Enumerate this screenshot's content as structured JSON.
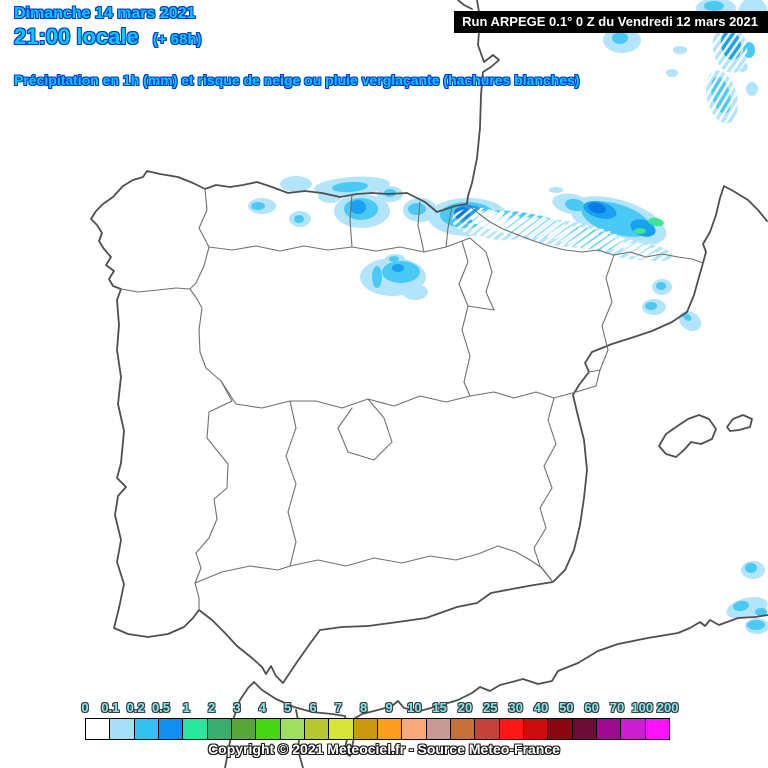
{
  "header": {
    "date_line": "Dimanche 14 mars 2021",
    "time_line": "21:00 locale",
    "offset_label": "(+ 68h)",
    "subtitle": "Précipitation en 1h (mm) et risque de neige ou pluie verglaçante (hachures blanches)",
    "run_label": "Run ARPEGE 0.1° 0 Z du Vendredi 12 mars 2021"
  },
  "footer": {
    "copyright": "Copyright © 2021 Meteociel.fr - Source Meteo-France"
  },
  "colors": {
    "title_fill": "#00ccff",
    "title_outline": "#0038cc",
    "run_bar_bg": "#000000",
    "run_bar_text": "#ffffff",
    "coastline": "#4f4f4f",
    "region_border": "#707070",
    "background": "#ffffff"
  },
  "legend": {
    "values": [
      "0",
      "0.1",
      "0.2",
      "0.5",
      "1",
      "2",
      "3",
      "4",
      "5",
      "6",
      "7",
      "8",
      "9",
      "10",
      "15",
      "20",
      "25",
      "30",
      "40",
      "50",
      "60",
      "70",
      "100",
      "200"
    ],
    "colors": [
      "#ffffff",
      "#a8def6",
      "#32c1f0",
      "#0f90f0",
      "#28e6a0",
      "#38af70",
      "#5aa53a",
      "#46d714",
      "#9fdf5f",
      "#b5c92e",
      "#d6e435",
      "#ca9a0e",
      "#ff9d1e",
      "#fca87a",
      "#c59b98",
      "#c57038",
      "#c64139",
      "#fc1a16",
      "#cb0d10",
      "#8d0710",
      "#6e0c35",
      "#9e0b8e",
      "#cb1ed0",
      "#fc12fc"
    ]
  },
  "map": {
    "level_colors": {
      "1": "#b2e4fb",
      "2": "#4ac9f4",
      "3": "#18a0f2",
      "4": "#0a7ae4",
      "5": "#3ee593"
    },
    "precipitation_blobs": [
      [
        352,
        186,
        38,
        9,
        -4,
        1
      ],
      [
        330,
        196,
        12,
        7,
        0,
        1
      ],
      [
        296,
        184,
        16,
        8,
        0,
        1
      ],
      [
        350,
        187,
        18,
        5,
        -4,
        2
      ],
      [
        262,
        206,
        14,
        8,
        0,
        1
      ],
      [
        258,
        206,
        7,
        4,
        0,
        2
      ],
      [
        300,
        219,
        11,
        8,
        0,
        1
      ],
      [
        299,
        219,
        5,
        4,
        0,
        2
      ],
      [
        362,
        211,
        28,
        17,
        0,
        1
      ],
      [
        361,
        209,
        17,
        11,
        0,
        2
      ],
      [
        358,
        207,
        8,
        7,
        0,
        3
      ],
      [
        390,
        194,
        13,
        8,
        0,
        1
      ],
      [
        390,
        193,
        6,
        4,
        0,
        2
      ],
      [
        420,
        210,
        17,
        12,
        0,
        1
      ],
      [
        417,
        209,
        9,
        6,
        0,
        2
      ],
      [
        395,
        259,
        10,
        5,
        0,
        1
      ],
      [
        394,
        259,
        5,
        3,
        0,
        2
      ],
      [
        393,
        277,
        33,
        19,
        0,
        1
      ],
      [
        401,
        272,
        19,
        11,
        0,
        2
      ],
      [
        398,
        268,
        6,
        4,
        0,
        3
      ],
      [
        377,
        277,
        5,
        11,
        0,
        2
      ],
      [
        415,
        292,
        13,
        8,
        0,
        1
      ],
      [
        556,
        190,
        7,
        3,
        0,
        1
      ],
      [
        468,
        217,
        40,
        19,
        0,
        1
      ],
      [
        467,
        215,
        27,
        13,
        0,
        2
      ],
      [
        469,
        214,
        15,
        9,
        0,
        3
      ],
      [
        462,
        213,
        8,
        6,
        0,
        4
      ],
      [
        483,
        217,
        5,
        4,
        0,
        5
      ],
      [
        500,
        226,
        32,
        14,
        5,
        1
      ],
      [
        520,
        224,
        50,
        12,
        8,
        2
      ],
      [
        560,
        233,
        65,
        13,
        8,
        1
      ],
      [
        585,
        238,
        38,
        10,
        10,
        2
      ],
      [
        618,
        247,
        40,
        10,
        12,
        1
      ],
      [
        648,
        252,
        25,
        8,
        10,
        1
      ],
      [
        572,
        204,
        20,
        10,
        10,
        1
      ],
      [
        575,
        205,
        10,
        6,
        10,
        2
      ],
      [
        618,
        221,
        50,
        21,
        17,
        1
      ],
      [
        616,
        219,
        36,
        15,
        17,
        2
      ],
      [
        600,
        210,
        17,
        8,
        15,
        3
      ],
      [
        597,
        208,
        9,
        5,
        15,
        4
      ],
      [
        643,
        228,
        13,
        8,
        20,
        3
      ],
      [
        656,
        222,
        8,
        4,
        10,
        5
      ],
      [
        640,
        231,
        6,
        3,
        0,
        5
      ],
      [
        622,
        40,
        19,
        13,
        0,
        1
      ],
      [
        620,
        38,
        8,
        6,
        0,
        2
      ],
      [
        680,
        50,
        7,
        4,
        0,
        1
      ],
      [
        672,
        73,
        6,
        4,
        0,
        1
      ],
      [
        716,
        8,
        20,
        10,
        0,
        1
      ],
      [
        714,
        6,
        10,
        5,
        0,
        2
      ],
      [
        753,
        14,
        15,
        17,
        0,
        1
      ],
      [
        730,
        48,
        17,
        25,
        -10,
        1
      ],
      [
        731,
        45,
        10,
        15,
        -10,
        3
      ],
      [
        749,
        50,
        6,
        8,
        0,
        2
      ],
      [
        742,
        67,
        6,
        5,
        0,
        1
      ],
      [
        722,
        97,
        15,
        27,
        -14,
        1
      ],
      [
        721,
        95,
        9,
        19,
        -14,
        2
      ],
      [
        752,
        89,
        6,
        7,
        0,
        1
      ],
      [
        662,
        287,
        10,
        8,
        0,
        1
      ],
      [
        661,
        286,
        5,
        4,
        0,
        2
      ],
      [
        654,
        307,
        12,
        8,
        0,
        1
      ],
      [
        651,
        306,
        6,
        4,
        0,
        2
      ],
      [
        690,
        321,
        12,
        9,
        35,
        1
      ],
      [
        687,
        317,
        5,
        3,
        35,
        2
      ],
      [
        753,
        570,
        12,
        9,
        0,
        1
      ],
      [
        751,
        568,
        6,
        5,
        0,
        2
      ],
      [
        747,
        608,
        21,
        10,
        -14,
        1
      ],
      [
        741,
        606,
        8,
        5,
        -10,
        2
      ],
      [
        761,
        612,
        6,
        4,
        0,
        2
      ],
      [
        757,
        626,
        12,
        8,
        0,
        1
      ],
      [
        756,
        625,
        9,
        5,
        0,
        2
      ]
    ],
    "hatch_shapes": [
      [
        480,
        222,
        28,
        14,
        5
      ],
      [
        500,
        226,
        32,
        14,
        5
      ],
      [
        520,
        224,
        50,
        12,
        8
      ],
      [
        560,
        233,
        65,
        13,
        8
      ],
      [
        585,
        238,
        38,
        10,
        10
      ],
      [
        618,
        247,
        40,
        10,
        12
      ],
      [
        648,
        252,
        25,
        8,
        10
      ],
      [
        730,
        48,
        17,
        25,
        -10
      ],
      [
        722,
        97,
        15,
        27,
        -14
      ]
    ]
  }
}
